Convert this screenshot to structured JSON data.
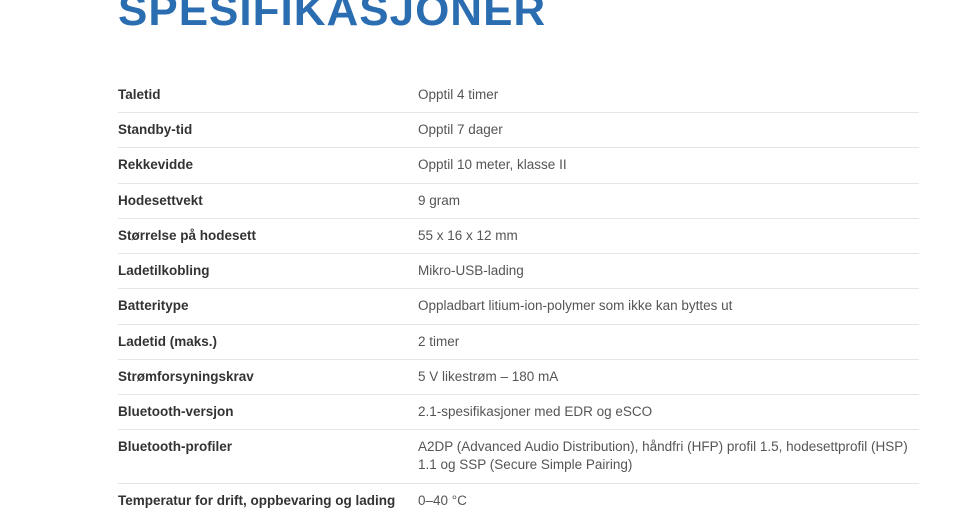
{
  "title": "SPESIFIKASJONER",
  "styling": {
    "title_color": "#2a6db0",
    "title_fontsize": 44,
    "title_fontweight": 700,
    "label_color": "#333333",
    "label_fontsize": 13.5,
    "label_fontweight": 700,
    "value_color": "#555555",
    "value_fontsize": 13.5,
    "value_fontweight": 400,
    "divider_color": "#e5e5e5",
    "background_color": "#ffffff",
    "label_column_width": 300
  },
  "rows": [
    {
      "label": "Taletid",
      "value": "Opptil 4 timer"
    },
    {
      "label": "Standby-tid",
      "value": "Opptil 7 dager"
    },
    {
      "label": "Rekkevidde",
      "value": "Opptil 10 meter, klasse II"
    },
    {
      "label": "Hodesettvekt",
      "value": "9 gram"
    },
    {
      "label": "Størrelse på hodesett",
      "value": "55 x 16 x 12 mm"
    },
    {
      "label": "Ladetilkobling",
      "value": "Mikro-USB-lading"
    },
    {
      "label": "Batteritype",
      "value": "Oppladbart litium-ion-polymer som ikke kan byttes ut"
    },
    {
      "label": "Ladetid (maks.)",
      "value": "2 timer"
    },
    {
      "label": "Strømforsyningskrav",
      "value": "5 V likestrøm – 180 mA"
    },
    {
      "label": "Bluetooth-versjon",
      "value": "2.1-spesifikasjoner med EDR og eSCO"
    },
    {
      "label": "Bluetooth-profiler",
      "value": "A2DP (Advanced Audio Distribution), håndfri (HFP) profil 1.5, hodesettprofil (HSP) 1.1 og SSP (Secure Simple Pairing)"
    },
    {
      "label": "Temperatur for drift, oppbevaring og lading",
      "value": "0–40 °C"
    }
  ]
}
